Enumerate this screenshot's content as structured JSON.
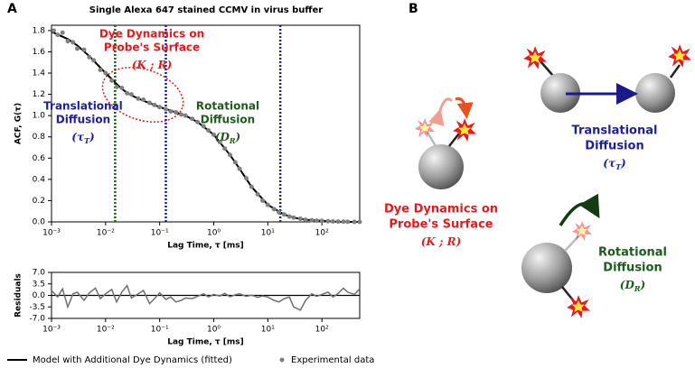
{
  "panel_labels": [
    "A",
    "B"
  ],
  "chart_data": [
    {
      "type": "line",
      "title": "Single Alexa 647 stained CCMV in virus buffer",
      "x_label": "Lag Time, τ [ms]",
      "y_label": "ACF, G(τ)",
      "xlog": true,
      "xlim": [
        0.001,
        500
      ],
      "ylim": [
        0,
        1.85
      ],
      "xticks": [
        {
          "value": 0.001,
          "label": "10⁻³"
        },
        {
          "value": 0.01,
          "label": "10⁻²"
        },
        {
          "value": 0.1,
          "label": "10⁻¹"
        },
        {
          "value": 1,
          "label": "10⁰"
        },
        {
          "value": 10,
          "label": "10¹"
        },
        {
          "value": 100,
          "label": "10²"
        }
      ],
      "yticks": [
        {
          "value": 0,
          "label": "0.0"
        },
        0.2,
        0.4,
        0.6,
        0.8,
        {
          "value": 1,
          "label": "1.0"
        },
        1.2,
        1.4,
        1.6,
        1.8
      ],
      "legend": "bottom",
      "series": [
        {
          "name": "Model with Additional Dye Dynamics (fitted)",
          "color": "#000000",
          "x": [
            0.001,
            0.002,
            0.003,
            0.005,
            0.01,
            0.02,
            0.03,
            0.05,
            0.1,
            0.2,
            0.3,
            0.5,
            1,
            2,
            3,
            5,
            10,
            20,
            30,
            50,
            100,
            200,
            500
          ],
          "values": [
            1.79,
            1.72,
            1.66,
            1.56,
            1.4,
            1.25,
            1.19,
            1.14,
            1.08,
            1.03,
            1.0,
            0.94,
            0.82,
            0.63,
            0.5,
            0.33,
            0.16,
            0.07,
            0.04,
            0.02,
            0.01,
            0.0,
            0.0
          ]
        },
        {
          "name": "Experimental data",
          "color": "#808080",
          "type": "scatter",
          "x": [
            0.0011,
            0.0013,
            0.0016,
            0.002,
            0.0025,
            0.003,
            0.004,
            0.005,
            0.006,
            0.008,
            0.01,
            0.013,
            0.016,
            0.02,
            0.025,
            0.03,
            0.04,
            0.05,
            0.065,
            0.08,
            0.1,
            0.13,
            0.16,
            0.2,
            0.25,
            0.3,
            0.4,
            0.5,
            0.65,
            0.8,
            1,
            1.3,
            1.6,
            2,
            2.5,
            3,
            4,
            5,
            6.5,
            8,
            10,
            13,
            16,
            20,
            25,
            30,
            40,
            50,
            65,
            80,
            100,
            130,
            160,
            200,
            250,
            300,
            400,
            500
          ],
          "values": [
            1.8,
            1.76,
            1.78,
            1.7,
            1.69,
            1.63,
            1.62,
            1.55,
            1.52,
            1.43,
            1.4,
            1.33,
            1.27,
            1.26,
            1.21,
            1.2,
            1.16,
            1.15,
            1.12,
            1.1,
            1.08,
            1.06,
            1.04,
            1.03,
            1.01,
            1.0,
            0.97,
            0.94,
            0.9,
            0.86,
            0.82,
            0.75,
            0.69,
            0.63,
            0.56,
            0.5,
            0.41,
            0.33,
            0.26,
            0.2,
            0.16,
            0.12,
            0.09,
            0.07,
            0.05,
            0.04,
            0.03,
            0.02,
            0.015,
            0.012,
            0.01,
            0.006,
            0.004,
            0.003,
            0.002,
            0.001,
            0.0,
            0.0
          ]
        }
      ],
      "vlines": [
        {
          "x": 0.015,
          "color": "#1e5c1e"
        },
        {
          "x": 0.13,
          "color": "#1f1f9c"
        },
        {
          "x": 17,
          "color": "#1f1f9c"
        }
      ],
      "annotations": [
        {
          "lines": [
            "Dye Dynamics on",
            "Probe's Surface"
          ],
          "symbol": [
            "(K ; R)"
          ],
          "color": "#e8191e"
        },
        {
          "lines": [
            "Rotational",
            "Diffusion"
          ],
          "symbol": [
            "(D",
            "R",
            ")"
          ],
          "color": "#1e5c1e"
        },
        {
          "lines": [
            "Translational",
            "Diffusion"
          ],
          "symbol": [
            "(τ",
            "T",
            ")"
          ],
          "color": "#1f1f9c"
        }
      ]
    },
    {
      "type": "line",
      "x_label": "Lag Time, τ [ms]",
      "y_label": "Residuals",
      "xlog": true,
      "xlim": [
        0.001,
        500
      ],
      "ylim": [
        -7,
        7
      ],
      "xticks": [
        {
          "value": 0.001,
          "label": "10⁻³"
        },
        {
          "value": 0.01,
          "label": "10⁻²"
        },
        {
          "value": 0.1,
          "label": "10⁻¹"
        },
        {
          "value": 1,
          "label": "10⁰"
        },
        {
          "value": 10,
          "label": "10¹"
        },
        {
          "value": 100,
          "label": "10²"
        }
      ],
      "yticks": [
        {
          "value": -7,
          "label": "-7.0"
        },
        -3.5,
        {
          "value": 0,
          "label": "0.0"
        },
        3.5,
        {
          "value": 7,
          "label": "7.0"
        }
      ],
      "series": [
        {
          "color": "#707070",
          "x": [
            0.001,
            0.0013,
            0.0016,
            0.002,
            0.0025,
            0.003,
            0.004,
            0.005,
            0.0065,
            0.008,
            0.01,
            0.013,
            0.016,
            0.02,
            0.025,
            0.03,
            0.04,
            0.05,
            0.065,
            0.08,
            0.1,
            0.13,
            0.16,
            0.2,
            0.25,
            0.3,
            0.4,
            0.5,
            0.65,
            0.8,
            1,
            1.3,
            1.6,
            2,
            2.5,
            3,
            4,
            5,
            6.5,
            8,
            10,
            13,
            16,
            20,
            25,
            30,
            40,
            50,
            65,
            80,
            100,
            130,
            160,
            200,
            250,
            300,
            400,
            500
          ],
          "values": [
            1.5,
            -0.5,
            2.0,
            -3.5,
            0.5,
            1.0,
            -1.5,
            0.8,
            2.2,
            -1.0,
            0.5,
            1.8,
            -2.0,
            1.0,
            3.0,
            -0.8,
            0.5,
            1.5,
            -2.5,
            -1.0,
            0.8,
            -1.2,
            -0.5,
            -2.0,
            -1.5,
            -0.8,
            -1.0,
            -0.3,
            0.5,
            -0.5,
            0.3,
            -0.2,
            0.6,
            -0.4,
            0.2,
            0.5,
            -0.3,
            0.1,
            -0.6,
            -0.2,
            -0.5,
            -1.5,
            -2.0,
            -1.0,
            -0.5,
            -3.5,
            -4.5,
            -1.5,
            0.5,
            -0.3,
            0.3,
            1.0,
            -0.5,
            0.6,
            2.2,
            1.0,
            0.3,
            2.0
          ]
        }
      ]
    }
  ],
  "panel_b": {
    "annotations": [
      {
        "lines": [
          "Translational",
          "Diffusion"
        ],
        "symbol": [
          "(τ",
          "T",
          ")"
        ],
        "color": "#1f1f9c"
      },
      {
        "lines": [
          "Dye Dynamics on",
          "Probe's Surface"
        ],
        "symbol": [
          "(K ; R)"
        ],
        "color": "#e8191e"
      },
      {
        "lines": [
          "Rotational",
          "Diffusion"
        ],
        "symbol": [
          "(D",
          "R",
          ")"
        ],
        "color": "#1e5c1e"
      }
    ]
  }
}
